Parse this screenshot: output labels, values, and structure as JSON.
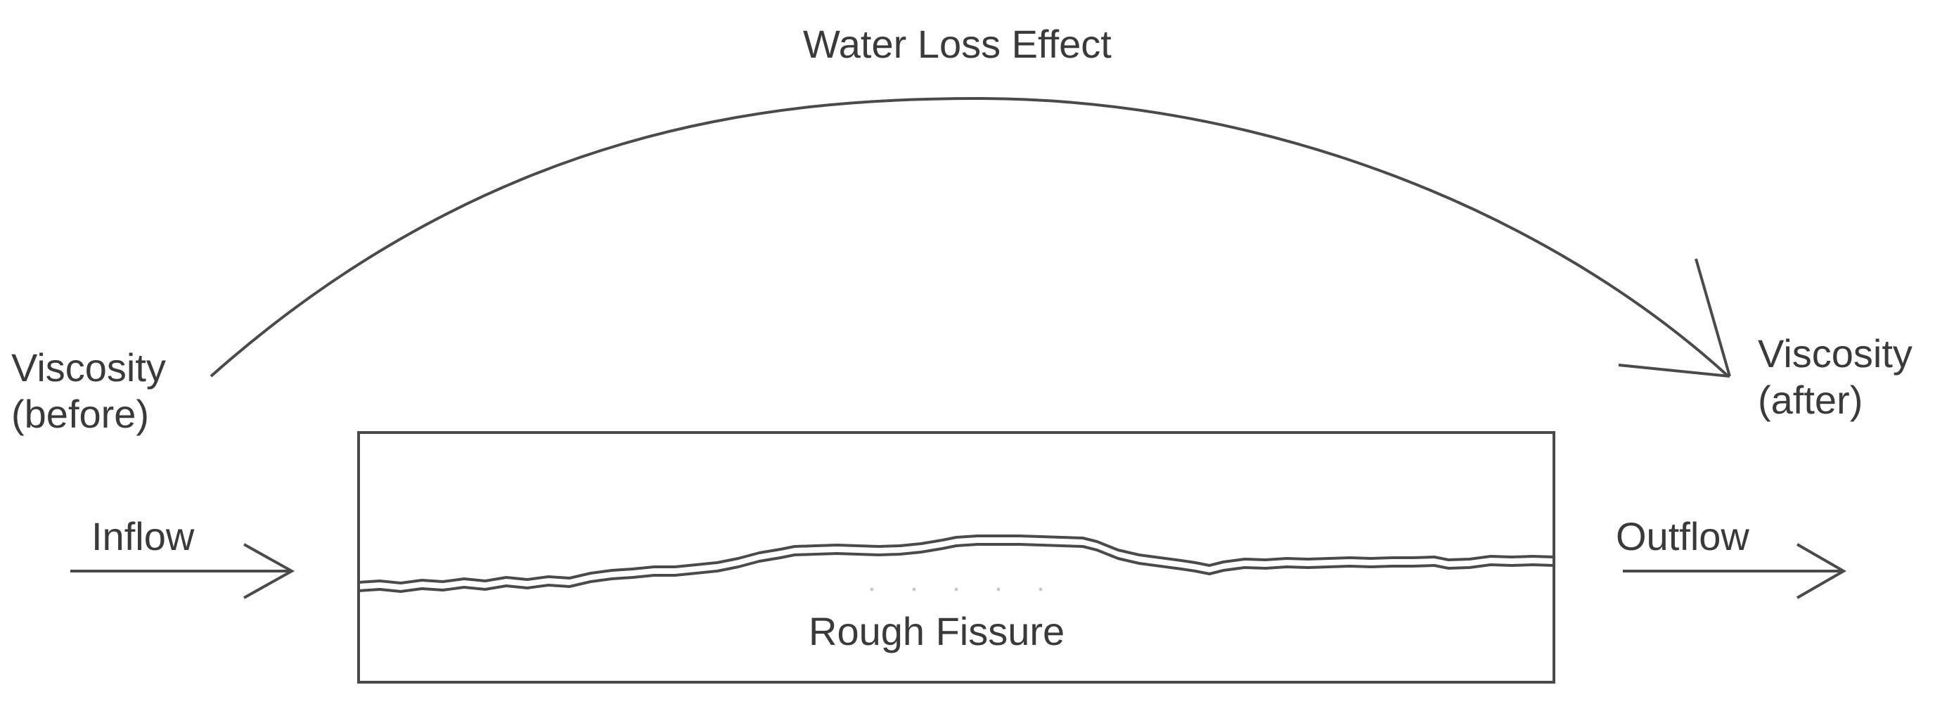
{
  "labels": {
    "title": "Water Loss Effect",
    "viscosity_before_line1": "Viscosity",
    "viscosity_before_line2": "(before)",
    "viscosity_after_line1": "Viscosity",
    "viscosity_after_line2": "(after)",
    "inflow": "Inflow",
    "outflow": "Outflow",
    "fissure": "Rough Fissure"
  },
  "colors": {
    "stroke": "#4a4a4a",
    "text": "#3a3a3a",
    "background": "#ffffff"
  }
}
